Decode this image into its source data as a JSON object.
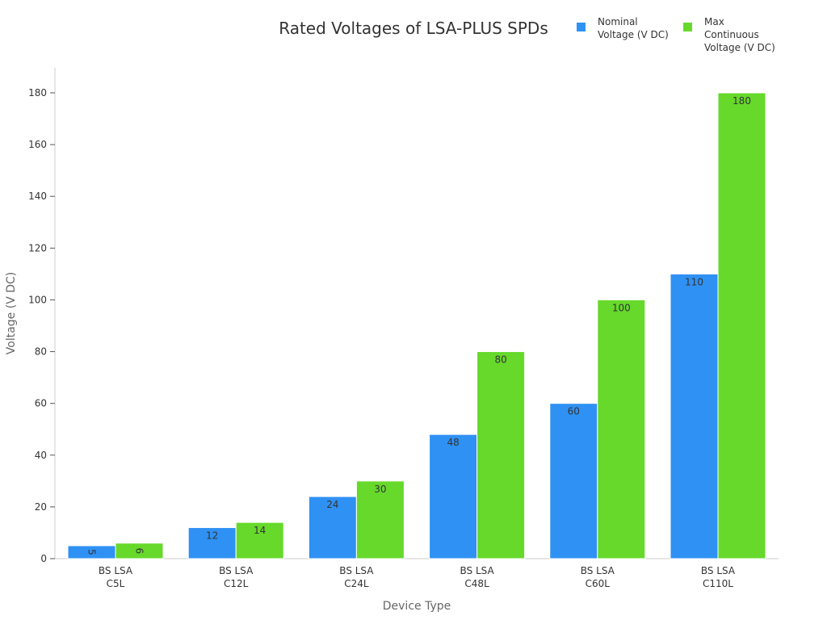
{
  "chart_data": {
    "type": "bar",
    "title": "Rated Voltages of LSA-PLUS SPDs",
    "xlabel": "Device Type",
    "ylabel": "Voltage (V DC)",
    "categories": [
      [
        "BS LSA",
        "C5L"
      ],
      [
        "BS LSA",
        "C12L"
      ],
      [
        "BS LSA",
        "C24L"
      ],
      [
        "BS LSA",
        "C48L"
      ],
      [
        "BS LSA",
        "C60L"
      ],
      [
        "BS LSA",
        "C110L"
      ]
    ],
    "series": [
      {
        "name": "Nominal Voltage (V DC)",
        "legend_lines": [
          "Nominal",
          "Voltage (V DC)"
        ],
        "color": "#2f91f3",
        "values": [
          5,
          12,
          24,
          48,
          60,
          110
        ]
      },
      {
        "name": "Max Continuous Voltage (V DC)",
        "legend_lines": [
          "Max",
          "Continuous",
          "Voltage (V DC)"
        ],
        "color": "#66d92b",
        "values": [
          6,
          14,
          30,
          80,
          100,
          180
        ]
      }
    ],
    "ylim": [
      0,
      190
    ],
    "yticks": [
      0,
      20,
      40,
      60,
      80,
      100,
      120,
      140,
      160,
      180
    ],
    "grid": false,
    "legend_position": "top-right"
  }
}
